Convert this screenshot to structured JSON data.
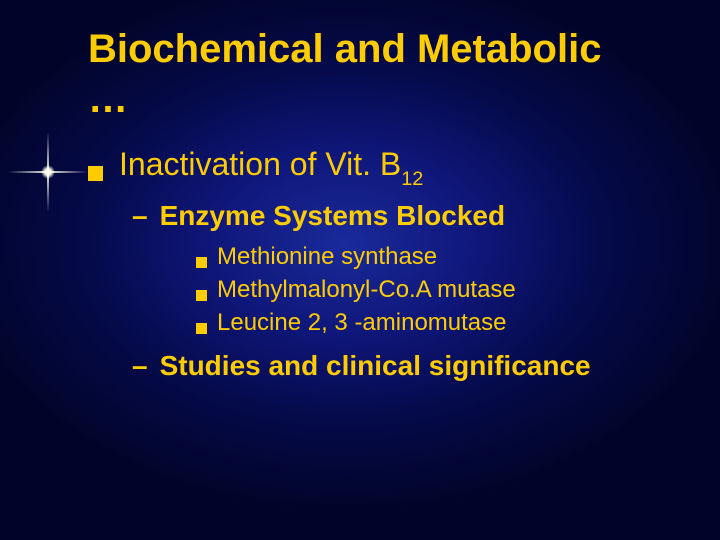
{
  "slide": {
    "background": {
      "gradient_center": "#1a2a9a",
      "gradient_mid": "#0e1678",
      "gradient_outer": "#050a4a",
      "gradient_edge": "#010428"
    },
    "title": {
      "text_line1": "Biochemical and Metabolic",
      "text_line2": "…",
      "color": "#ffcc00",
      "fontsize": 40,
      "font_weight": "bold"
    },
    "body": {
      "text_color": "#ffcc00",
      "bullet_color": "#ffcc00",
      "level1_fontsize": 32,
      "level2_fontsize": 28,
      "level3_fontsize": 24,
      "items": [
        {
          "text_prefix": "Inactivation of Vit. B",
          "subscript": "12",
          "children": [
            {
              "dash": "–",
              "text": "Enzyme Systems Blocked",
              "children": [
                {
                  "text": "Methionine synthase"
                },
                {
                  "text": "Methylmalonyl-Co.A mutase"
                },
                {
                  "text": "Leucine 2, 3 -aminomutase"
                }
              ]
            },
            {
              "dash": "–",
              "text": "Studies and clinical significance",
              "children": []
            }
          ]
        }
      ]
    },
    "decoration": {
      "type": "lens-flare",
      "position": "left-upper",
      "color": "#fffff0"
    }
  }
}
